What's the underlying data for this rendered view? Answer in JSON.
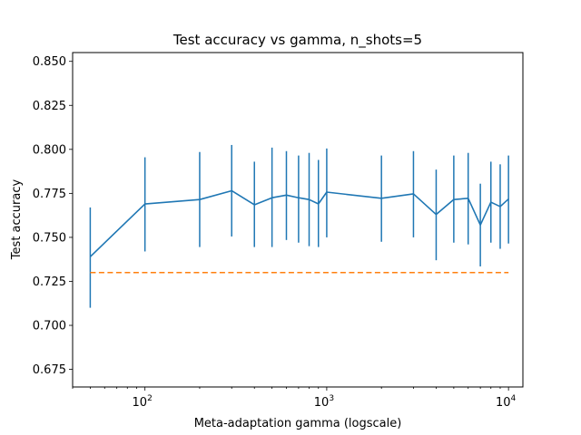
{
  "chart_data": {
    "type": "line",
    "title": "Test accuracy vs gamma, n_shots=5",
    "xlabel": "Meta-adaptation gamma (logscale)",
    "ylabel": "Test accuracy",
    "xscale": "log",
    "xlim": [
      40,
      12000
    ],
    "ylim": [
      0.665,
      0.855
    ],
    "grid": false,
    "x_ticks": [
      {
        "value": 100,
        "base": "10",
        "exp": "2"
      },
      {
        "value": 1000,
        "base": "10",
        "exp": "3"
      },
      {
        "value": 10000,
        "base": "10",
        "exp": "4"
      }
    ],
    "y_ticks": [
      {
        "value": 0.675,
        "label": "0.675"
      },
      {
        "value": 0.7,
        "label": "0.700"
      },
      {
        "value": 0.725,
        "label": "0.725"
      },
      {
        "value": 0.75,
        "label": "0.750"
      },
      {
        "value": 0.775,
        "label": "0.775"
      },
      {
        "value": 0.8,
        "label": "0.800"
      },
      {
        "value": 0.825,
        "label": "0.825"
      },
      {
        "value": 0.85,
        "label": "0.850"
      }
    ],
    "series": [
      {
        "color": "#1f77b4",
        "style": "solid",
        "x": [
          50,
          100,
          200,
          300,
          400,
          500,
          600,
          700,
          800,
          900,
          1000,
          2000,
          3000,
          4000,
          5000,
          6000,
          7000,
          8000,
          9000,
          10000
        ],
        "y": [
          0.739,
          0.769,
          0.7715,
          0.7765,
          0.7685,
          0.7725,
          0.774,
          0.7725,
          0.7715,
          0.769,
          0.7757,
          0.7722,
          0.7747,
          0.763,
          0.7715,
          0.7722,
          0.757,
          0.77,
          0.7675,
          0.7718
        ],
        "err_low": [
          0.71,
          0.742,
          0.7445,
          0.7505,
          0.7445,
          0.7445,
          0.7485,
          0.747,
          0.745,
          0.7445,
          0.75,
          0.7475,
          0.75,
          0.737,
          0.747,
          0.746,
          0.7335,
          0.747,
          0.7435,
          0.7465
        ],
        "err_high": [
          0.767,
          0.7955,
          0.7985,
          0.8025,
          0.793,
          0.801,
          0.799,
          0.7965,
          0.798,
          0.794,
          0.8005,
          0.7965,
          0.799,
          0.7885,
          0.7965,
          0.798,
          0.7805,
          0.793,
          0.7915,
          0.7965
        ]
      },
      {
        "color": "#ff7f0e",
        "style": "dashed",
        "x": [
          50,
          10000
        ],
        "y": [
          0.73,
          0.73
        ]
      }
    ]
  }
}
